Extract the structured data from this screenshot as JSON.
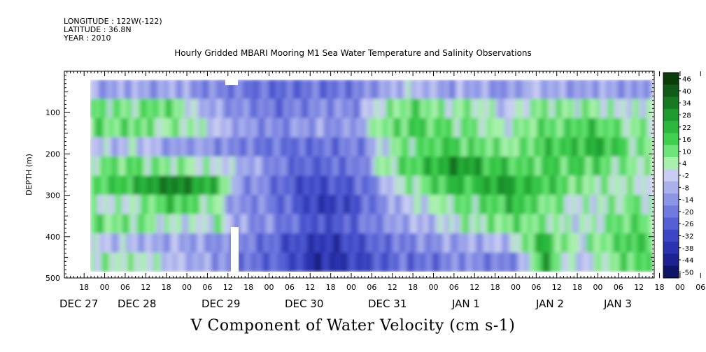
{
  "header": {
    "longitude": "LONGITUDE : 122W(-122)",
    "latitude": "LATITUDE : 36.8N",
    "year": "YEAR : 2010"
  },
  "chart_data": {
    "type": "heatmap",
    "title": "Hourly Gridded MBARI Mooring M1 Sea Water Temperature and Salinity Observations",
    "bottom_title": "V Component of Water Velocity (cm s-1)",
    "ylabel": "DEPTH (m)",
    "ylim": [
      500,
      0
    ],
    "yticks": [
      100,
      200,
      300,
      400,
      500
    ],
    "x_hour_ticks": [
      "18",
      "00",
      "06",
      "12",
      "18",
      "00",
      "06",
      "12",
      "18",
      "00",
      "06",
      "12",
      "18",
      "00",
      "06",
      "12",
      "18",
      "00",
      "06",
      "12",
      "18",
      "00",
      "06",
      "12",
      "18",
      "00",
      "06",
      "12",
      "18",
      "00",
      "06",
      "12"
    ],
    "x_day_labels": [
      "DEC 27",
      "DEC 28",
      "DEC 29",
      "DEC 30",
      "DEC 31",
      "JAN  1",
      "JAN  2",
      "JAN  3"
    ],
    "colorbar": {
      "labels": [
        "46",
        "40",
        "34",
        "28",
        "22",
        "16",
        "10",
        "4",
        "-2",
        "-8",
        "-14",
        "-20",
        "-26",
        "-32",
        "-38",
        "-44",
        "-50"
      ],
      "colors": [
        "#0b3d0b",
        "#0f5a17",
        "#157a22",
        "#1e9a2f",
        "#2cb83d",
        "#3fd050",
        "#6ee57a",
        "#a8f0ac",
        "#c9cdf2",
        "#a9b0ec",
        "#8d95e6",
        "#717ade",
        "#5560d4",
        "#3c46c6",
        "#2a32ae",
        "#1c2390",
        "#0f1565"
      ]
    },
    "bands": [
      {
        "t": 0.0,
        "v": [
          -8,
          10,
          14,
          -4,
          10,
          16,
          4,
          14,
          -2,
          8
        ]
      },
      {
        "t": 0.06,
        "v": [
          -10,
          12,
          12,
          -6,
          12,
          18,
          2,
          10,
          -4,
          6
        ]
      },
      {
        "t": 0.12,
        "v": [
          -8,
          8,
          14,
          -2,
          14,
          22,
          6,
          12,
          -6,
          4
        ]
      },
      {
        "t": 0.17,
        "v": [
          -12,
          14,
          6,
          -8,
          8,
          30,
          14,
          4,
          -10,
          2
        ]
      },
      {
        "t": 0.22,
        "v": [
          -6,
          10,
          8,
          -12,
          10,
          34,
          20,
          2,
          -8,
          -4
        ]
      },
      {
        "t": 0.27,
        "v": [
          -14,
          -4,
          4,
          -10,
          6,
          26,
          10,
          -2,
          -12,
          -8
        ]
      },
      {
        "t": 0.33,
        "v": [
          -16,
          -10,
          -6,
          -14,
          4,
          20,
          4,
          8,
          -14,
          -12
        ]
      },
      {
        "t": 0.38,
        "v": [
          -18,
          -14,
          -10,
          -16,
          -8,
          -12,
          -14,
          -12,
          -16,
          -18
        ]
      },
      {
        "t": 0.43,
        "v": [
          -20,
          -16,
          -14,
          -18,
          -10,
          -14,
          -16,
          -14,
          -20,
          -20
        ]
      },
      {
        "t": 0.49,
        "v": [
          -22,
          -20,
          -16,
          -20,
          -18,
          -22,
          -20,
          -18,
          -26,
          -24
        ]
      },
      {
        "t": 0.54,
        "v": [
          -20,
          -18,
          -12,
          -22,
          -24,
          -28,
          -26,
          -22,
          -30,
          -30
        ]
      },
      {
        "t": 0.59,
        "v": [
          -18,
          -14,
          -10,
          -20,
          -22,
          -30,
          -34,
          -28,
          -36,
          -38
        ]
      },
      {
        "t": 0.65,
        "v": [
          -20,
          -16,
          -14,
          -18,
          -20,
          -26,
          -30,
          -26,
          -32,
          -34
        ]
      },
      {
        "t": 0.7,
        "v": [
          -16,
          -12,
          -8,
          -16,
          -18,
          -22,
          -24,
          -20,
          -28,
          -30
        ]
      },
      {
        "t": 0.74,
        "v": [
          -10,
          6,
          8,
          -4,
          2,
          -14,
          -16,
          -14,
          -22,
          -26
        ]
      },
      {
        "t": 0.79,
        "v": [
          -6,
          10,
          14,
          8,
          12,
          4,
          -6,
          -10,
          -18,
          -22
        ]
      },
      {
        "t": 0.84,
        "v": [
          -4,
          14,
          18,
          12,
          16,
          8,
          -2,
          -8,
          -16,
          -20
        ]
      },
      {
        "t": 0.89,
        "v": [
          -8,
          10,
          14,
          16,
          22,
          14,
          4,
          -4,
          -12,
          -18
        ]
      },
      {
        "t": 0.94,
        "v": [
          -12,
          6,
          10,
          18,
          30,
          24,
          12,
          2,
          -10,
          -16
        ]
      },
      {
        "t": 0.98,
        "v": [
          -6,
          8,
          12,
          14,
          28,
          18,
          10,
          6,
          -8,
          -14
        ]
      },
      {
        "t": 1.03,
        "v": [
          -10,
          2,
          6,
          12,
          20,
          26,
          14,
          8,
          -6,
          -18
        ]
      },
      {
        "t": 1.08,
        "v": [
          -14,
          -4,
          2,
          8,
          18,
          28,
          20,
          10,
          -4,
          -16
        ]
      },
      {
        "t": 1.12,
        "v": [
          -8,
          6,
          10,
          12,
          14,
          22,
          18,
          12,
          8,
          -10
        ]
      },
      {
        "t": 1.17,
        "v": [
          -4,
          10,
          14,
          16,
          18,
          20,
          12,
          10,
          24,
          28
        ]
      },
      {
        "t": 1.22,
        "v": [
          -10,
          6,
          12,
          18,
          14,
          16,
          8,
          4,
          10,
          6
        ]
      },
      {
        "t": 1.26,
        "v": [
          -12,
          4,
          16,
          20,
          18,
          10,
          4,
          -2,
          2,
          -4
        ]
      },
      {
        "t": 1.31,
        "v": [
          -8,
          8,
          20,
          24,
          14,
          6,
          2,
          6,
          8,
          2
        ]
      },
      {
        "t": 1.36,
        "v": [
          -10,
          4,
          12,
          18,
          10,
          4,
          8,
          12,
          14,
          10
        ]
      },
      {
        "t": 1.4,
        "v": [
          -14,
          -2,
          6,
          10,
          8,
          6,
          10,
          14,
          20,
          16
        ]
      },
      {
        "t": 1.45,
        "v": [
          -10,
          4,
          8,
          6,
          4,
          2,
          6,
          10,
          14,
          12
        ]
      }
    ]
  }
}
